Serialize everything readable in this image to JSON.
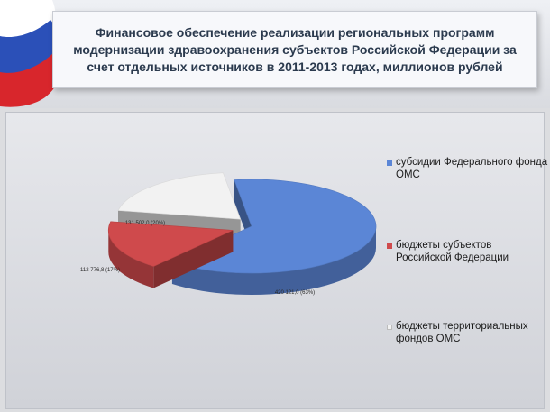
{
  "title": "Финансовое обеспечение реализации региональных программ модернизации здравоохранения субъектов Российской Федерации за счет отдельных источников в 2011-2013 годах, миллионов рублей",
  "flag_colors": {
    "white": "#ffffff",
    "blue": "#2b50b8",
    "red": "#d8262c"
  },
  "chart_data": {
    "type": "pie",
    "title": "Финансовое обеспечение реализации региональных программ модернизации здравоохранения субъектов Российской Федерации за счет отдельных источников в 2011-2013 годах, миллионов рублей",
    "legend_position": "right",
    "exploded": true,
    "three_d": true,
    "slices": [
      {
        "name": "субсидии Федерального фонда ОМС",
        "value": 420121.0,
        "percent": 63,
        "label": "420 121,0 (63%)",
        "color": "#5b86d6"
      },
      {
        "name": "бюджеты субъектов Российской Федерации",
        "value": 112776.8,
        "percent": 17,
        "label": "112 776,8 (17%)",
        "color": "#cf4a4c"
      },
      {
        "name": "бюджеты территориальных фондов ОМС",
        "value": 131502.0,
        "percent": 20,
        "label": "131 502,0 (20%)",
        "color": "#f2f2f2"
      }
    ]
  }
}
